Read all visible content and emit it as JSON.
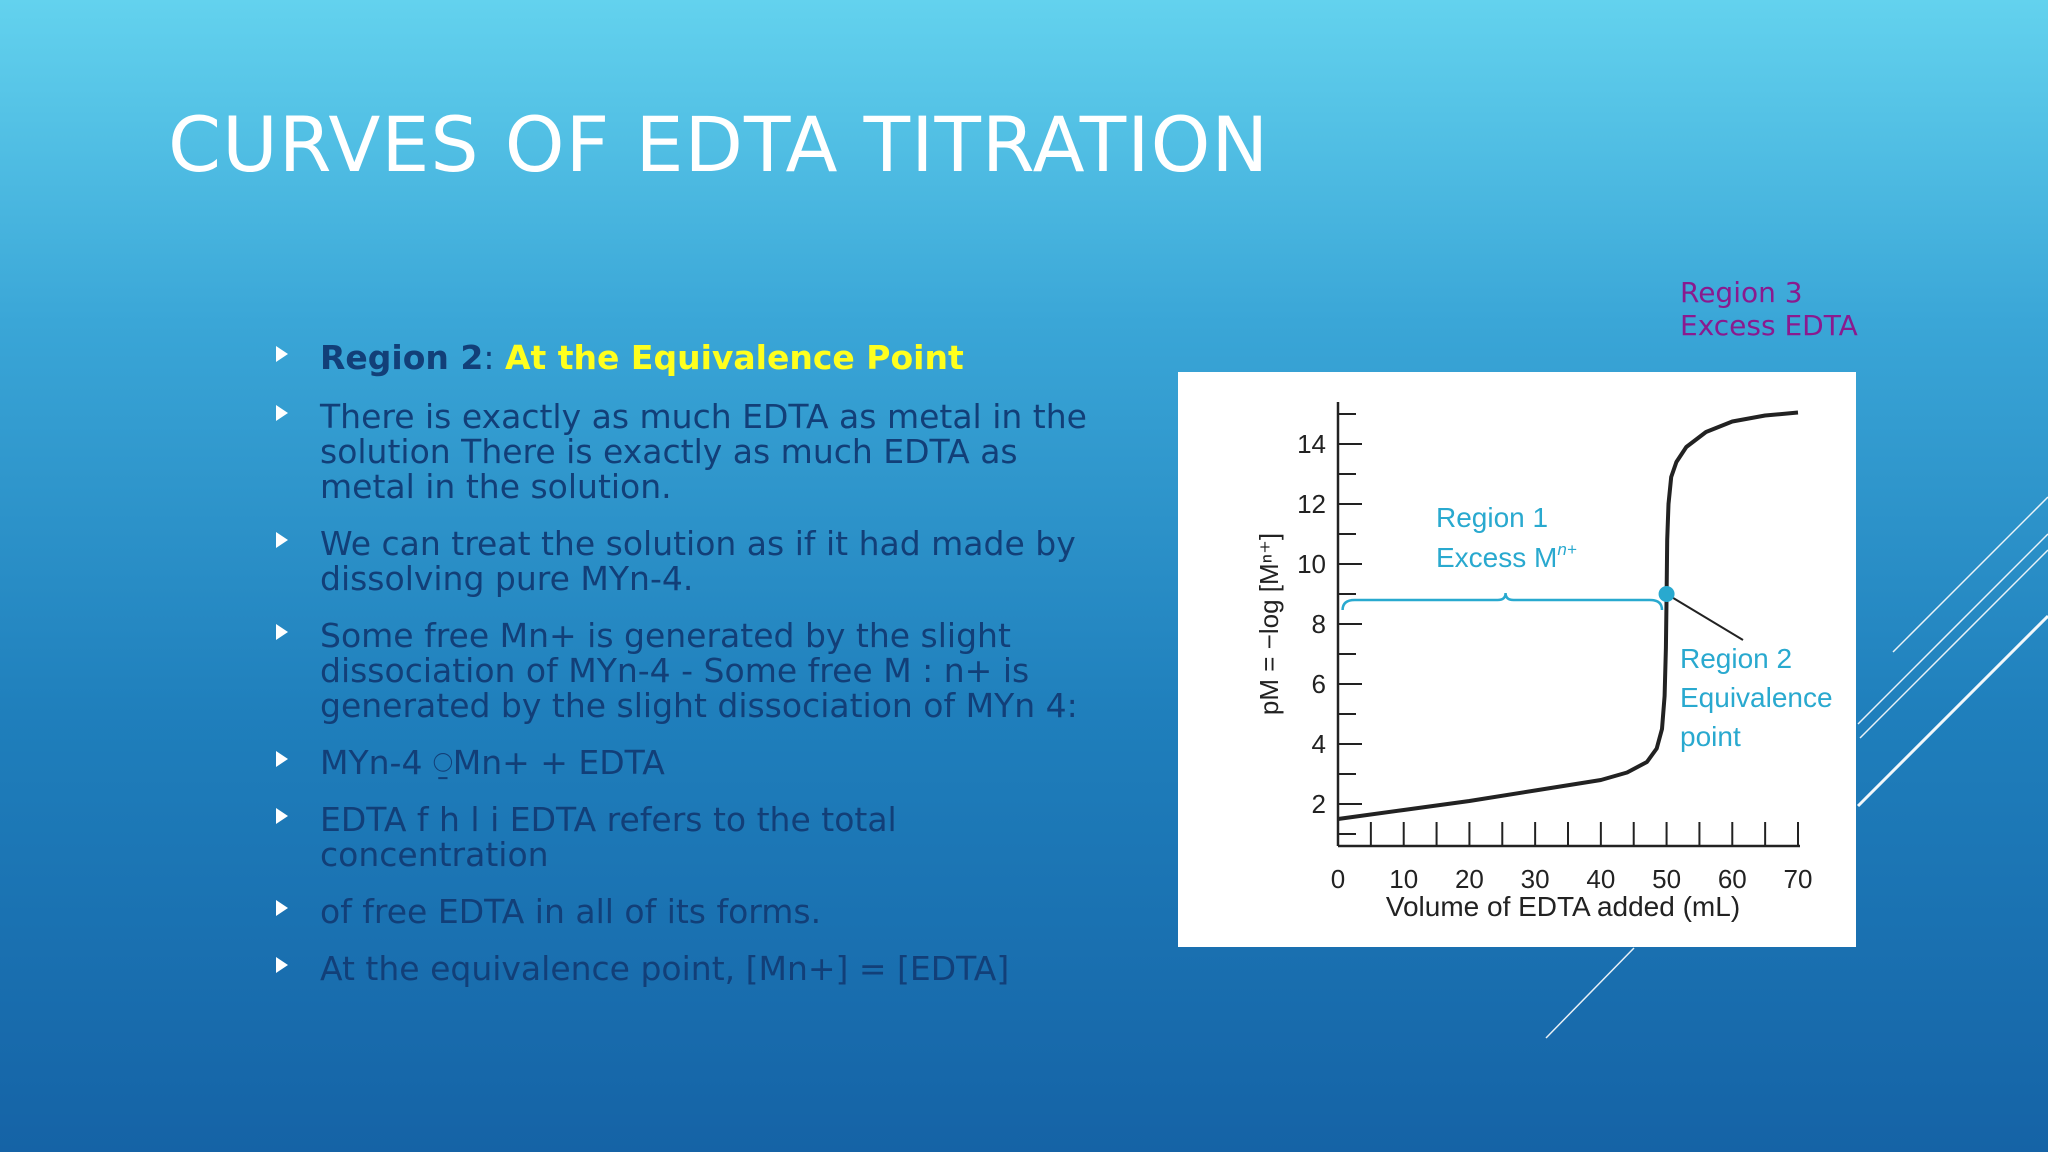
{
  "slide": {
    "title": "CURVES OF EDTA TITRATION",
    "region3_note": [
      "Region 3",
      "Excess EDTA"
    ],
    "bullets": [
      {
        "label": "Region 2",
        "colon": ":",
        "highlight": "At the Equivalence Point"
      },
      {
        "text": "There is exactly as much EDTA as metal in the solution There is exactly as much EDTA as metal in the solution."
      },
      {
        "text": "We can treat the solution as if it had made by dissolving pure MYn-4."
      },
      {
        "text": "Some free Mn+ is generated by the slight dissociation of MYn-4 - Some free M : n+ is generated by the slight dissociation of MYn 4:"
      },
      {
        "text": "MYn-4  ⍜Mn+ + EDTA"
      },
      {
        "text": "EDTA f h l i EDTA refers to the total concentration"
      },
      {
        "text": "of free EDTA in all of its forms."
      },
      {
        "text": "At the equivalence point, [Mn+] = [EDTA]"
      }
    ],
    "colors": {
      "title": "#ffffff",
      "body_text": "#123f78",
      "highlight": "#ffff1e",
      "region3_note": "#8a1a8f",
      "chart_annotation": "#29a9cf",
      "chart_curve": "#222222"
    }
  },
  "chart_data": {
    "type": "line",
    "xlabel": "Volume of EDTA added (mL)",
    "ylabel": "pM = −log [Mⁿ⁺]",
    "xlim": [
      0,
      70
    ],
    "ylim": [
      1,
      15
    ],
    "xticks": [
      0,
      10,
      20,
      30,
      40,
      50,
      60,
      70
    ],
    "yticks": [
      2,
      4,
      6,
      8,
      10,
      12,
      14
    ],
    "series": [
      {
        "x": [
          0,
          10,
          20,
          30,
          40,
          44,
          47,
          48.5,
          49.3,
          49.7,
          49.9,
          50,
          50.1,
          50.3,
          50.7,
          51.5,
          53,
          56,
          60,
          65,
          70
        ],
        "y": [
          1.5,
          1.8,
          2.1,
          2.45,
          2.8,
          3.05,
          3.4,
          3.85,
          4.5,
          5.6,
          7.2,
          9.0,
          10.8,
          12.0,
          12.9,
          13.4,
          13.9,
          14.4,
          14.75,
          14.95,
          15.05
        ]
      }
    ],
    "equivalence_point": {
      "x": 50,
      "y": 9.0
    },
    "annotations": {
      "region1": [
        "Region 1",
        "Excess M"
      ],
      "region1_sup": "n+",
      "region2": [
        "Region 2",
        "Equivalence",
        "point"
      ]
    },
    "grid": false
  }
}
